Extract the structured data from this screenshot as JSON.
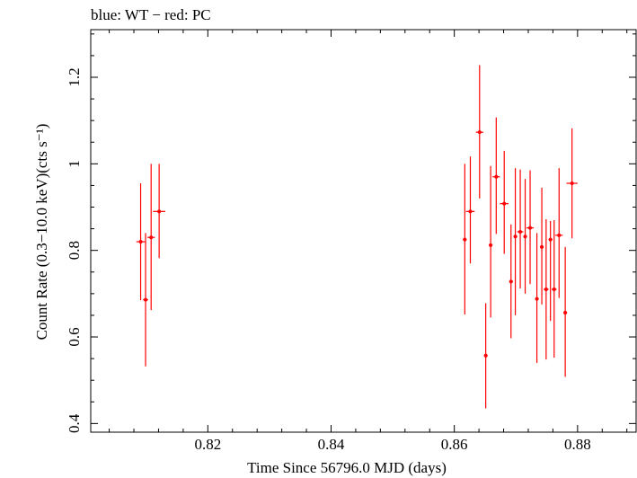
{
  "chart_data": {
    "type": "scatter",
    "title": "blue: WT − red: PC",
    "xlabel": "Time Since 56796.0 MJD (days)",
    "ylabel": "Count Rate (0.3−10.0 keV)(cts s⁻¹)",
    "xlim": [
      0.801,
      0.8895
    ],
    "ylim": [
      0.38,
      1.31
    ],
    "x_ticks": [
      0.82,
      0.84,
      0.86,
      0.88
    ],
    "x_tick_labels": [
      "0.82",
      "0.84",
      "0.86",
      "0.88"
    ],
    "y_ticks": [
      0.4,
      0.6,
      0.8,
      1.0,
      1.2
    ],
    "y_tick_labels": [
      "0.4",
      "0.6",
      "0.8",
      "1",
      "1.2"
    ],
    "series": [
      {
        "name": "PC",
        "color": "#ff0000",
        "points": [
          {
            "x": 0.8091,
            "y": 0.82,
            "xerr": 0.0007,
            "ylo": 0.685,
            "yhi": 0.955
          },
          {
            "x": 0.8099,
            "y": 0.686,
            "xerr": 0.0004,
            "ylo": 0.532,
            "yhi": 0.84
          },
          {
            "x": 0.8108,
            "y": 0.83,
            "xerr": 0.0006,
            "ylo": 0.662,
            "yhi": 1.0
          },
          {
            "x": 0.8121,
            "y": 0.89,
            "xerr": 0.001,
            "ylo": 0.782,
            "yhi": 1.0
          },
          {
            "x": 0.8617,
            "y": 0.825,
            "xerr": 0.0003,
            "ylo": 0.652,
            "yhi": 1.0
          },
          {
            "x": 0.8626,
            "y": 0.89,
            "xerr": 0.0007,
            "ylo": 0.77,
            "yhi": 1.017
          },
          {
            "x": 0.8641,
            "y": 1.073,
            "xerr": 0.0006,
            "ylo": 0.92,
            "yhi": 1.228
          },
          {
            "x": 0.8651,
            "y": 0.557,
            "xerr": 0.0003,
            "ylo": 0.435,
            "yhi": 0.678
          },
          {
            "x": 0.8659,
            "y": 0.812,
            "xerr": 0.0003,
            "ylo": 0.645,
            "yhi": 0.995
          },
          {
            "x": 0.8668,
            "y": 0.97,
            "xerr": 0.0006,
            "ylo": 0.838,
            "yhi": 1.107
          },
          {
            "x": 0.8681,
            "y": 0.908,
            "xerr": 0.0007,
            "ylo": 0.792,
            "yhi": 1.03
          },
          {
            "x": 0.8692,
            "y": 0.728,
            "xerr": 0.0003,
            "ylo": 0.597,
            "yhi": 0.86
          },
          {
            "x": 0.8699,
            "y": 0.832,
            "xerr": 0.0003,
            "ylo": 0.65,
            "yhi": 0.99
          },
          {
            "x": 0.8707,
            "y": 0.843,
            "xerr": 0.0005,
            "ylo": 0.712,
            "yhi": 0.987
          },
          {
            "x": 0.8715,
            "y": 0.832,
            "xerr": 0.0003,
            "ylo": 0.7,
            "yhi": 0.965
          },
          {
            "x": 0.8723,
            "y": 0.852,
            "xerr": 0.0006,
            "ylo": 0.722,
            "yhi": 0.985
          },
          {
            "x": 0.8734,
            "y": 0.688,
            "xerr": 0.0003,
            "ylo": 0.54,
            "yhi": 0.84
          },
          {
            "x": 0.8742,
            "y": 0.808,
            "xerr": 0.0003,
            "ylo": 0.675,
            "yhi": 0.945
          },
          {
            "x": 0.8749,
            "y": 0.71,
            "xerr": 0.0004,
            "ylo": 0.548,
            "yhi": 0.872
          },
          {
            "x": 0.8756,
            "y": 0.825,
            "xerr": 0.0003,
            "ylo": 0.637,
            "yhi": 0.868
          },
          {
            "x": 0.8762,
            "y": 0.71,
            "xerr": 0.0004,
            "ylo": 0.552,
            "yhi": 0.87
          },
          {
            "x": 0.877,
            "y": 0.835,
            "xerr": 0.0006,
            "ylo": 0.69,
            "yhi": 0.99
          },
          {
            "x": 0.878,
            "y": 0.656,
            "xerr": 0.0003,
            "ylo": 0.508,
            "yhi": 0.808
          },
          {
            "x": 0.8791,
            "y": 0.955,
            "xerr": 0.0009,
            "ylo": 0.828,
            "yhi": 1.082
          }
        ]
      }
    ]
  }
}
